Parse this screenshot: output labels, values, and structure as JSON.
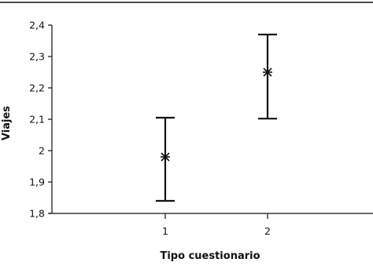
{
  "chart_data": {
    "type": "errorbar",
    "xlabel": "Tipo cuestionario",
    "ylabel": "Viajes",
    "ylim": [
      1.8,
      2.4
    ],
    "x_ticks": [
      "1",
      "2"
    ],
    "y_ticks": [
      "1,8",
      "1,9",
      "2",
      "2,1",
      "2,2",
      "2,3",
      "2,4"
    ],
    "points": [
      {
        "x": "1",
        "mean": 1.98,
        "low": 1.84,
        "high": 2.105
      },
      {
        "x": "2",
        "mean": 2.25,
        "low": 2.102,
        "high": 2.37
      }
    ],
    "marker": "asterisk",
    "grid": false
  },
  "colors": {
    "ink": "#111111",
    "background": "#ffffff"
  }
}
